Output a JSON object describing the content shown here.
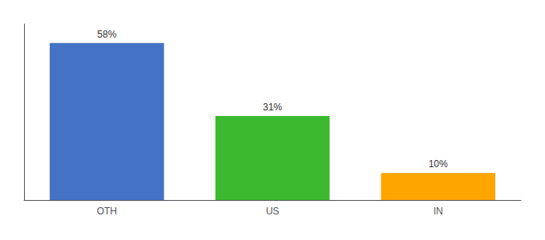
{
  "chart_data": {
    "type": "bar",
    "categories": [
      "OTH",
      "US",
      "IN"
    ],
    "values": [
      58,
      31,
      10
    ],
    "value_labels": [
      "58%",
      "31%",
      "10%"
    ],
    "colors": [
      "#4472C4",
      "#3CB92E",
      "#FFA500"
    ],
    "ylim": [
      0,
      65
    ],
    "grid": false,
    "data_labels": true,
    "tick_labels": "x"
  }
}
